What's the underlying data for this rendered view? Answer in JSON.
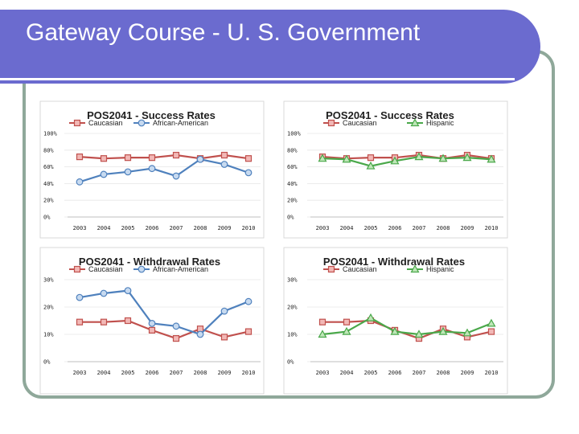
{
  "slide": {
    "title": "Gateway Course - U. S. Government"
  },
  "colors": {
    "header": "#6b6bcf",
    "frame": "#8fa89a",
    "caucasian": "#c0504d",
    "african_american": "#4f81bd",
    "hispanic": "#4aa84a"
  },
  "chart_data": [
    {
      "type": "line",
      "title": "POS2041 - Success Rates",
      "categories": [
        "2003",
        "2004",
        "2005",
        "2006",
        "2007",
        "2008",
        "2009",
        "2010"
      ],
      "yticks": [
        "0%",
        "20%",
        "40%",
        "60%",
        "80%",
        "100%"
      ],
      "ylim": [
        0,
        100
      ],
      "legend_position": "top",
      "series": [
        {
          "name": "Caucasian",
          "color": "#c0504d",
          "marker": "square",
          "values": [
            72,
            70,
            71,
            71,
            74,
            70,
            74,
            70
          ]
        },
        {
          "name": "African-American",
          "color": "#4f81bd",
          "marker": "circle",
          "values": [
            42,
            51,
            54,
            58,
            49,
            69,
            63,
            53
          ]
        }
      ]
    },
    {
      "type": "line",
      "title": "POS2041 - Success Rates",
      "categories": [
        "2003",
        "2004",
        "2005",
        "2006",
        "2007",
        "2008",
        "2009",
        "2010"
      ],
      "yticks": [
        "0%",
        "20%",
        "40%",
        "60%",
        "80%",
        "100%"
      ],
      "ylim": [
        0,
        100
      ],
      "legend_position": "top",
      "series": [
        {
          "name": "Caucasian",
          "color": "#c0504d",
          "marker": "square",
          "values": [
            72,
            70,
            71,
            71,
            74,
            70,
            74,
            70
          ]
        },
        {
          "name": "Hispanic",
          "color": "#4aa84a",
          "marker": "triangle",
          "values": [
            70,
            69,
            61,
            67,
            72,
            70,
            71,
            69
          ]
        }
      ]
    },
    {
      "type": "line",
      "title": "POS2041 - Withdrawal Rates",
      "categories": [
        "2003",
        "2004",
        "2005",
        "2006",
        "2007",
        "2008",
        "2009",
        "2010"
      ],
      "yticks": [
        "0%",
        "10%",
        "20%",
        "30%"
      ],
      "ylim": [
        0,
        30
      ],
      "legend_position": "top",
      "series": [
        {
          "name": "Caucasian",
          "color": "#c0504d",
          "marker": "square",
          "values": [
            14.5,
            14.5,
            15,
            11.5,
            8.5,
            12,
            9,
            11
          ]
        },
        {
          "name": "African-American",
          "color": "#4f81bd",
          "marker": "circle",
          "values": [
            23.5,
            25,
            26,
            14,
            13,
            10,
            18.5,
            22
          ]
        }
      ]
    },
    {
      "type": "line",
      "title": "POS2041 - Withdrawal Rates",
      "categories": [
        "2003",
        "2004",
        "2005",
        "2006",
        "2007",
        "2008",
        "2009",
        "2010"
      ],
      "yticks": [
        "0%",
        "10%",
        "20%",
        "30%"
      ],
      "ylim": [
        0,
        30
      ],
      "legend_position": "top",
      "series": [
        {
          "name": "Caucasian",
          "color": "#c0504d",
          "marker": "square",
          "values": [
            14.5,
            14.5,
            15,
            11.5,
            8.5,
            12,
            9,
            11
          ]
        },
        {
          "name": "Hispanic",
          "color": "#4aa84a",
          "marker": "triangle",
          "values": [
            10,
            11,
            16,
            11,
            10,
            11,
            10.5,
            14
          ]
        }
      ]
    }
  ]
}
